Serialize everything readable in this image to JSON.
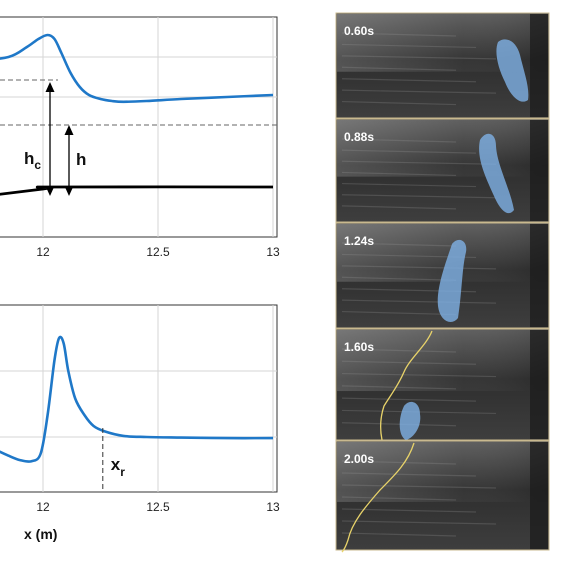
{
  "chart_data": [
    {
      "type": "line",
      "xlim": [
        11.5,
        13
      ],
      "xticks": [
        "12",
        "12.5",
        "13"
      ],
      "grid": true,
      "annotations": {
        "hc": {
          "main": "h",
          "sub": "c"
        },
        "h": {
          "main": "h"
        }
      },
      "series": [
        {
          "color": "#1f78c8",
          "x": [
            11.5,
            11.7,
            11.85,
            11.93,
            11.98,
            12.02,
            12.05,
            12.08,
            12.12,
            12.16,
            12.2,
            12.25,
            12.3,
            12.35,
            12.45,
            12.6,
            12.8,
            13.0
          ],
          "y": [
            0.985,
            0.99,
            1.0,
            1.025,
            1.045,
            1.055,
            1.045,
            1.01,
            0.96,
            0.925,
            0.905,
            0.895,
            0.89,
            0.888,
            0.89,
            0.895,
            0.9,
            0.905
          ]
        },
        {
          "color": "#000000",
          "x": [
            11.5,
            12.0,
            12.04,
            13.0
          ],
          "y": [
            0.635,
            0.67,
            0.675,
            0.675
          ]
        }
      ]
    },
    {
      "type": "line",
      "xlim": [
        11.5,
        13
      ],
      "xticks": [
        "12",
        "12.5",
        "13"
      ],
      "xlabel": "x (m)",
      "grid": true,
      "annotations": {
        "xr": {
          "main": "x",
          "sub": "r",
          "x": 12.26
        }
      },
      "series": [
        {
          "color": "#1f78c8",
          "x": [
            11.5,
            11.6,
            11.7,
            11.78,
            11.85,
            11.9,
            11.95,
            11.99,
            12.02,
            12.05,
            12.07,
            12.09,
            12.11,
            12.14,
            12.18,
            12.22,
            12.27,
            12.35,
            12.45,
            12.6,
            12.8,
            13.0
          ],
          "y": [
            0.44,
            0.33,
            0.2,
            0.1,
            0.03,
            -0.01,
            -0.02,
            0.05,
            0.4,
            0.9,
            1.1,
            1.05,
            0.8,
            0.55,
            0.4,
            0.3,
            0.25,
            0.21,
            0.2,
            0.195,
            0.19,
            0.19
          ]
        }
      ]
    }
  ],
  "snapshots": [
    {
      "time": "0.60s"
    },
    {
      "time": "0.88s"
    },
    {
      "time": "1.24s"
    },
    {
      "time": "1.60s"
    },
    {
      "time": "2.00s"
    }
  ],
  "colors": {
    "curve": "#1f78c8",
    "bed": "#000000",
    "plume": "#7fb2e6",
    "front": "#e8d36a",
    "photo_bg": "#3b3b3b",
    "photo_border": "#c9b98f"
  }
}
